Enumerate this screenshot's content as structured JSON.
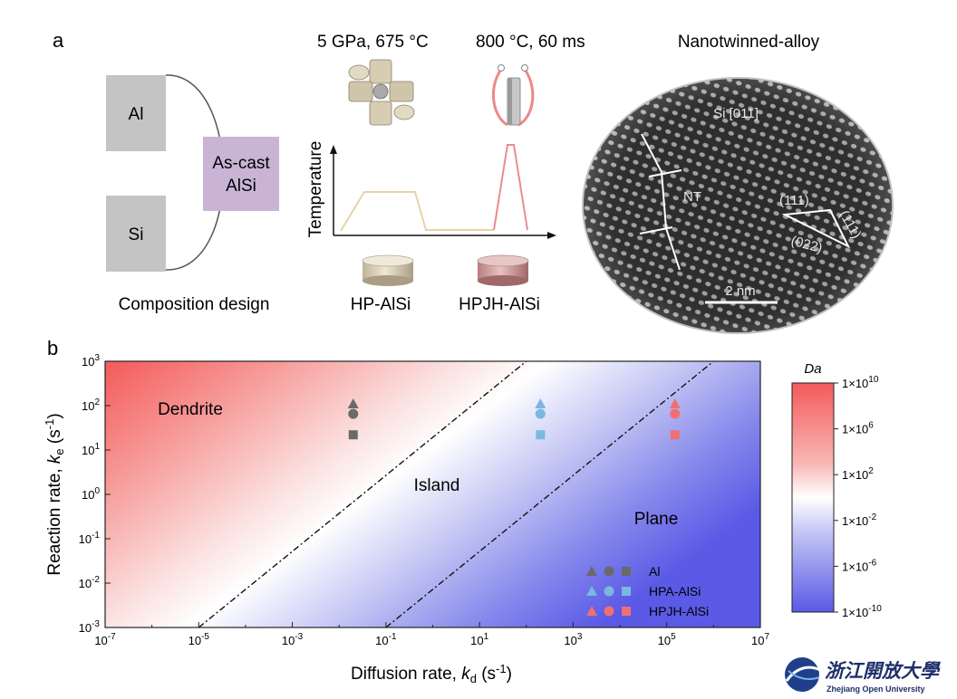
{
  "panel_a": {
    "letter": "a",
    "al_label": "Al",
    "si_label": "Si",
    "ascast_line1": "As-cast",
    "ascast_line2": "AlSi",
    "composition_caption": "Composition design",
    "hp_condition_base": "5 GPa, 675 ",
    "hp_condition_unit": "°C",
    "jh_condition_num": "800 ",
    "jh_condition_unit": "°C, 60 ms",
    "temperature_axis": "Temperature",
    "hp_sample": "HP-AlSi",
    "hpjh_sample": "HPJH-AlSi",
    "tem_title": "Nanotwinned-alloy",
    "tem_zone": "Si [011]",
    "tem_nt": "NT",
    "tem_plane1": "(111)",
    "tem_plane2": "(111)",
    "tem_plane3": "(022)",
    "tem_scale": "2 nm"
  },
  "panel_b": {
    "letter": "b",
    "xlabel_main": "Diffusion rate, ",
    "xlabel_sym": "k",
    "xlabel_sub": "d",
    "xlabel_unit": " (s",
    "xlabel_exp": "-1",
    "xlabel_close": ")",
    "ylabel_main": "Reaction rate, ",
    "ylabel_sym": "k",
    "ylabel_sub": "e",
    "ylabel_unit": " (s",
    "ylabel_exp": "-1",
    "ylabel_close": ")",
    "region_dendrite": "Dendrite",
    "region_island": "Island",
    "region_plane": "Plane",
    "colorbar_title": "Da",
    "legend": [
      "Al",
      "HPA-AlSi",
      "HPJH-AlSi"
    ]
  },
  "watermark": {
    "chinese": "浙江開放大學",
    "english": "Zhejiang Open University"
  },
  "colors": {
    "red": "#f45a5a",
    "blue": "#5a5ae8",
    "gray_marker": "#6a6a6a",
    "blue_marker": "#7ab8e0",
    "red_marker": "#f07070",
    "box_gray": "#c4c4c4",
    "box_purple": "#c9b4d6",
    "hp_curve": "#e8d3a8",
    "jh_curve": "#ee8a8a"
  },
  "chart_data": {
    "type": "heatmap",
    "x_scale": "log",
    "y_scale": "log",
    "xlim": [
      1e-07,
      10000000.0
    ],
    "ylim": [
      0.001,
      1000.0
    ],
    "x_ticks": [
      "10-7",
      "10-5",
      "10-3",
      "10-1",
      "101",
      "103",
      "105",
      "107"
    ],
    "y_ticks": [
      "10-3",
      "10-2",
      "10-1",
      "100",
      "101",
      "102",
      "103"
    ],
    "colorbar": {
      "label": "Da",
      "ticks": [
        "1×10-10",
        "1×10-6",
        "1×10-2",
        "1×102",
        "1×106",
        "1×1010"
      ],
      "range": [
        1e-10,
        10000000000.0
      ]
    },
    "boundaries": [
      {
        "x": [
          1e-05,
          100
        ],
        "y": [
          0.001,
          1000.0
        ]
      },
      {
        "x": [
          0.1,
          1000000.0
        ],
        "y": [
          0.001,
          1000.0
        ]
      }
    ],
    "series": [
      {
        "name": "Al",
        "points": [
          {
            "marker": "triangle",
            "x": 0.02,
            "y": 110
          },
          {
            "marker": "circle",
            "x": 0.02,
            "y": 65
          },
          {
            "marker": "square",
            "x": 0.02,
            "y": 22
          }
        ]
      },
      {
        "name": "HPA-AlSi",
        "points": [
          {
            "marker": "triangle",
            "x": 200,
            "y": 110
          },
          {
            "marker": "circle",
            "x": 200,
            "y": 65
          },
          {
            "marker": "square",
            "x": 200,
            "y": 22
          }
        ]
      },
      {
        "name": "HPJH-AlSi",
        "points": [
          {
            "marker": "triangle",
            "x": 150000,
            "y": 110
          },
          {
            "marker": "circle",
            "x": 150000,
            "y": 65
          },
          {
            "marker": "square",
            "x": 150000,
            "y": 22
          }
        ]
      }
    ]
  }
}
